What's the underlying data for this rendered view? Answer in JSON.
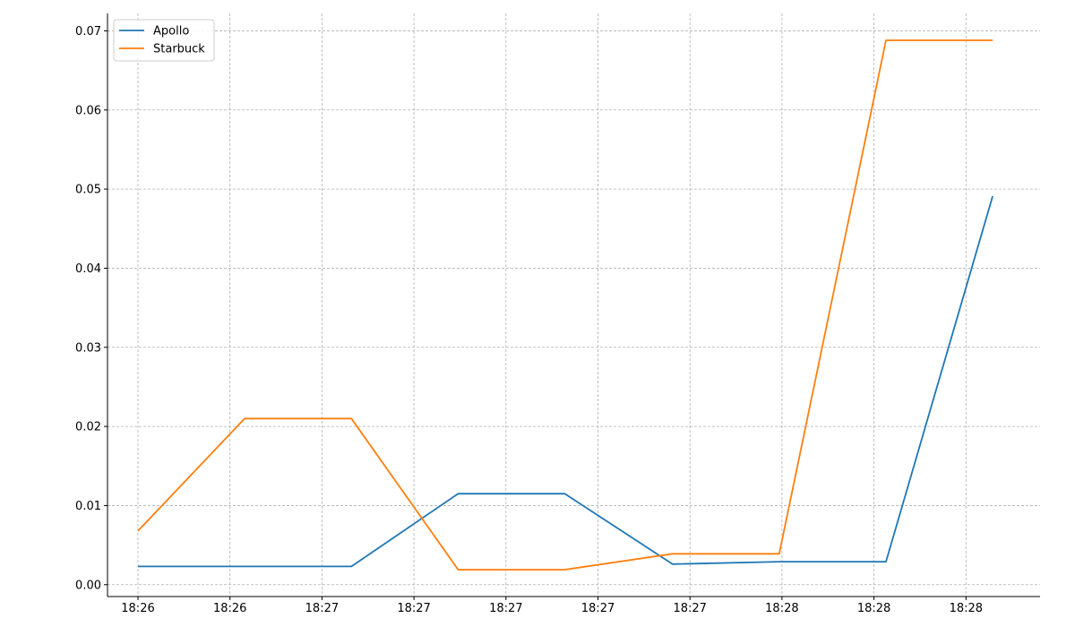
{
  "chart_data": {
    "type": "line",
    "title": "",
    "xlabel": "",
    "ylabel": "",
    "x_tick_labels": [
      "18:26",
      "18:26",
      "18:27",
      "18:27",
      "18:27",
      "18:27",
      "18:27",
      "18:28",
      "18:28",
      "18:28"
    ],
    "y_tick_labels": [
      "0.00",
      "0.01",
      "0.02",
      "0.03",
      "0.04",
      "0.05",
      "0.06",
      "0.07"
    ],
    "ylim": [
      -0.0015,
      0.0722
    ],
    "grid": true,
    "legend_position": "upper-left",
    "series": [
      {
        "name": "Apollo",
        "color": "#1f77b4",
        "points": [
          {
            "t": 0.0,
            "y": 0.0023
          },
          {
            "t": 1.16,
            "y": 0.0023
          },
          {
            "t": 2.32,
            "y": 0.0023
          },
          {
            "t": 3.48,
            "y": 0.0115
          },
          {
            "t": 4.64,
            "y": 0.0115
          },
          {
            "t": 5.81,
            "y": 0.0026
          },
          {
            "t": 6.97,
            "y": 0.0029
          },
          {
            "t": 8.13,
            "y": 0.0029
          },
          {
            "t": 9.29,
            "y": 0.0491
          }
        ]
      },
      {
        "name": "Starbuck",
        "color": "#ff7f0e",
        "points": [
          {
            "t": 0.0,
            "y": 0.0068
          },
          {
            "t": 1.16,
            "y": 0.021
          },
          {
            "t": 2.32,
            "y": 0.021
          },
          {
            "t": 3.48,
            "y": 0.0019
          },
          {
            "t": 4.64,
            "y": 0.0019
          },
          {
            "t": 5.81,
            "y": 0.0039
          },
          {
            "t": 6.97,
            "y": 0.0039
          },
          {
            "t": 8.13,
            "y": 0.0688
          },
          {
            "t": 9.29,
            "y": 0.0688
          }
        ]
      }
    ]
  }
}
